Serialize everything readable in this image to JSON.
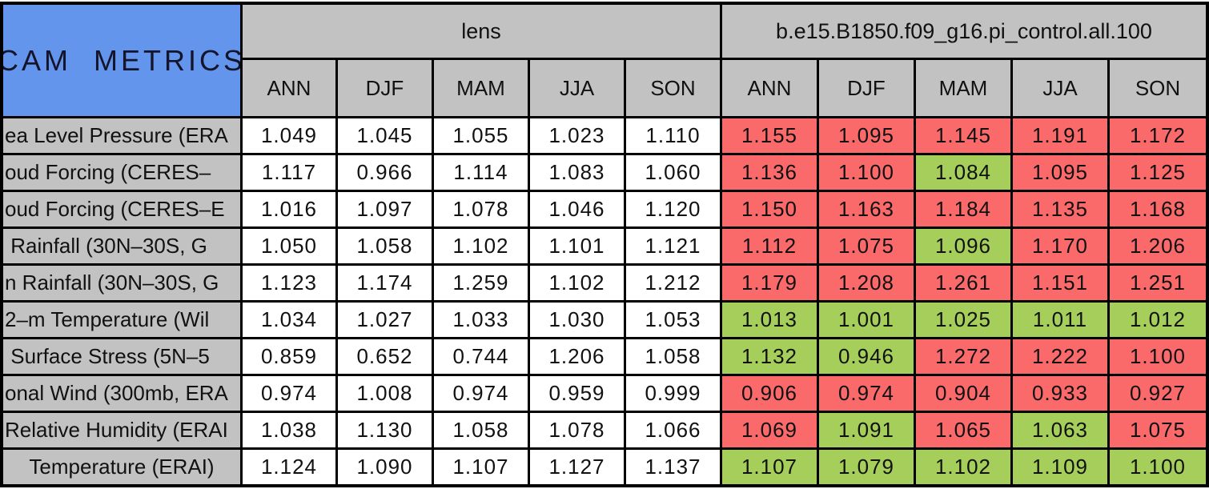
{
  "colors": {
    "title_blue": "#6495ed",
    "header_gray": "#c2c2c2",
    "fail_red": "#fa6a6a",
    "pass_green": "#a5ce5b",
    "grid_black": "#000000",
    "cell_white": "#ffffff"
  },
  "chart_data": {
    "type": "table",
    "title_cell": "CAM  METRICS",
    "groups": [
      {
        "label": "lens"
      },
      {
        "label": "b.e15.B1850.f09_g16.pi_control.all.100"
      }
    ],
    "season_columns": [
      "ANN",
      "DJF",
      "MAM",
      "JJA",
      "SON"
    ],
    "rows": [
      {
        "metric": "ea Level Pressure (ERA",
        "lens": [
          "1.049",
          "1.045",
          "1.055",
          "1.023",
          "1.110"
        ],
        "control": [
          "1.155",
          "1.095",
          "1.145",
          "1.191",
          "1.172"
        ],
        "control_status": [
          "red",
          "red",
          "red",
          "red",
          "red"
        ]
      },
      {
        "metric": "oud Forcing (CERES–",
        "lens": [
          "1.117",
          "0.966",
          "1.114",
          "1.083",
          "1.060"
        ],
        "control": [
          "1.136",
          "1.100",
          "1.084",
          "1.095",
          "1.125"
        ],
        "control_status": [
          "red",
          "red",
          "green",
          "red",
          "red"
        ]
      },
      {
        "metric": "oud Forcing (CERES–E",
        "lens": [
          "1.016",
          "1.097",
          "1.078",
          "1.046",
          "1.120"
        ],
        "control": [
          "1.150",
          "1.163",
          "1.184",
          "1.135",
          "1.168"
        ],
        "control_status": [
          "red",
          "red",
          "red",
          "red",
          "red"
        ]
      },
      {
        "metric": " Rainfall (30N–30S, G",
        "lens": [
          "1.050",
          "1.058",
          "1.102",
          "1.101",
          "1.121"
        ],
        "control": [
          "1.112",
          "1.075",
          "1.096",
          "1.170",
          "1.206"
        ],
        "control_status": [
          "red",
          "red",
          "green",
          "red",
          "red"
        ]
      },
      {
        "metric": "n Rainfall (30N–30S, G",
        "lens": [
          "1.123",
          "1.174",
          "1.259",
          "1.102",
          "1.212"
        ],
        "control": [
          "1.179",
          "1.208",
          "1.261",
          "1.151",
          "1.251"
        ],
        "control_status": [
          "red",
          "red",
          "red",
          "red",
          "red"
        ]
      },
      {
        "metric": "2–m Temperature (Wil",
        "lens": [
          "1.034",
          "1.027",
          "1.033",
          "1.030",
          "1.053"
        ],
        "control": [
          "1.013",
          "1.001",
          "1.025",
          "1.011",
          "1.012"
        ],
        "control_status": [
          "green",
          "green",
          "green",
          "green",
          "green"
        ]
      },
      {
        "metric": " Surface Stress (5N–5",
        "lens": [
          "0.859",
          "0.652",
          "0.744",
          "1.206",
          "1.058"
        ],
        "control": [
          "1.132",
          "0.946",
          "1.272",
          "1.222",
          "1.100"
        ],
        "control_status": [
          "green",
          "green",
          "red",
          "red",
          "red"
        ]
      },
      {
        "metric": "onal Wind (300mb, ERA",
        "lens": [
          "0.974",
          "1.008",
          "0.974",
          "0.959",
          "0.999"
        ],
        "control": [
          "0.906",
          "0.974",
          "0.904",
          "0.933",
          "0.927"
        ],
        "control_status": [
          "red",
          "red",
          "red",
          "red",
          "red"
        ]
      },
      {
        "metric": "Relative Humidity (ERAI",
        "lens": [
          "1.038",
          "1.130",
          "1.058",
          "1.078",
          "1.066"
        ],
        "control": [
          "1.069",
          "1.091",
          "1.065",
          "1.063",
          "1.075"
        ],
        "control_status": [
          "red",
          "green",
          "red",
          "green",
          "red"
        ]
      },
      {
        "metric": "Temperature (ERAI)",
        "label_centered": true,
        "lens": [
          "1.124",
          "1.090",
          "1.107",
          "1.127",
          "1.137"
        ],
        "control": [
          "1.107",
          "1.079",
          "1.102",
          "1.109",
          "1.100"
        ],
        "control_status": [
          "green",
          "green",
          "green",
          "green",
          "green"
        ]
      }
    ]
  }
}
